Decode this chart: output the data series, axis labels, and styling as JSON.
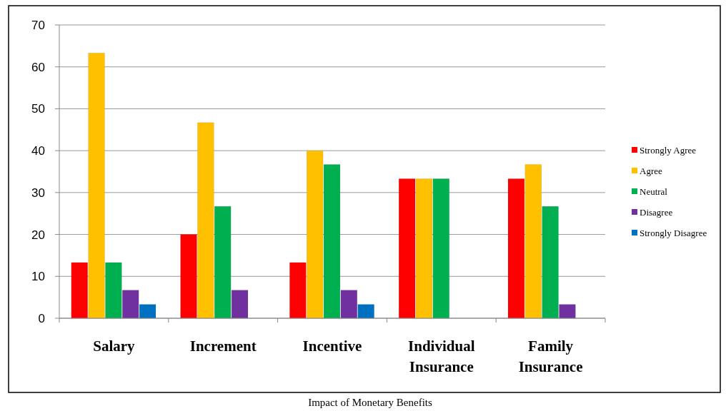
{
  "chart_data": {
    "type": "bar",
    "title": "Impact of Monetary Benefits",
    "categories": [
      "Salary",
      "Increment",
      "Incentive",
      "Individual Insurance",
      "Family Insurance"
    ],
    "series": [
      {
        "name": "Strongly Agree",
        "color": "#ff0000",
        "values": [
          13.3,
          20,
          13.3,
          33.3,
          33.3
        ]
      },
      {
        "name": "Agree",
        "color": "#ffc000",
        "values": [
          63.3,
          46.7,
          40,
          33.3,
          36.7
        ]
      },
      {
        "name": "Neutral",
        "color": "#00b050",
        "values": [
          13.3,
          26.7,
          36.7,
          33.3,
          26.7
        ]
      },
      {
        "name": "Disagree",
        "color": "#7030a0",
        "values": [
          6.7,
          6.7,
          6.7,
          0,
          3.3
        ]
      },
      {
        "name": "Strongly Disagree",
        "color": "#0070c0",
        "values": [
          3.3,
          0,
          3.3,
          0,
          0
        ]
      }
    ],
    "ylim": [
      0,
      70
    ],
    "yticks": [
      0,
      10,
      20,
      30,
      40,
      50,
      60,
      70
    ],
    "grid": "y",
    "legend": "right"
  }
}
